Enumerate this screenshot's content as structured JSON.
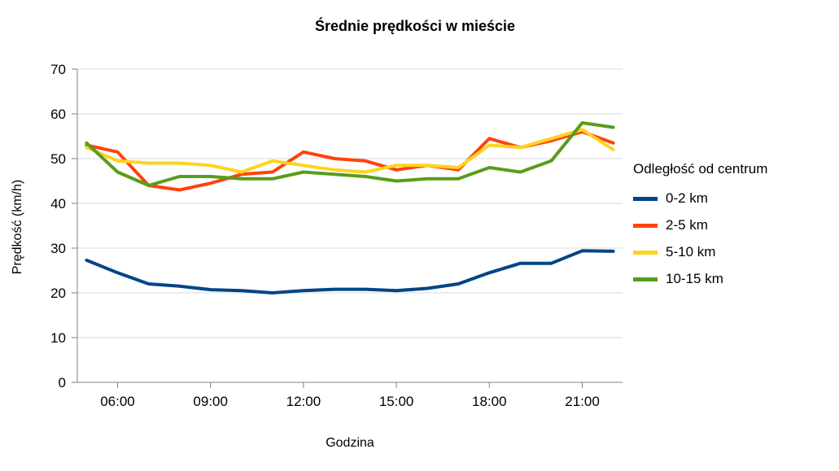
{
  "title": "Średnie prędkości w mieście",
  "chart_data": {
    "type": "line",
    "title": "Średnie prędkości w mieście",
    "xlabel": "Godzina",
    "ylabel": "Prędkość (km/h)",
    "ylim": [
      0,
      70
    ],
    "y_ticks": [
      0,
      10,
      20,
      30,
      40,
      50,
      60,
      70
    ],
    "grid": "horizontal",
    "legend_position": "right",
    "legend_title": "Odległość od centrum",
    "x_hours": [
      5,
      6,
      7,
      8,
      9,
      10,
      11,
      12,
      13,
      14,
      15,
      16,
      17,
      18,
      19,
      20,
      21,
      22
    ],
    "x_tick_hours": [
      6,
      9,
      12,
      15,
      18,
      21
    ],
    "x_tick_labels": [
      "06:00",
      "09:00",
      "12:00",
      "15:00",
      "18:00",
      "21:00"
    ],
    "series": [
      {
        "name": "0-2 km",
        "color": "#004586",
        "values": [
          27.3,
          24.5,
          22.0,
          21.5,
          20.7,
          20.5,
          20.0,
          20.5,
          20.8,
          20.8,
          20.5,
          21.0,
          22.0,
          24.5,
          26.6,
          26.6,
          29.4,
          29.3
        ]
      },
      {
        "name": "2-5 km",
        "color": "#FF420E",
        "values": [
          53.0,
          51.5,
          44.0,
          43.0,
          44.5,
          46.5,
          47.0,
          51.5,
          50.0,
          49.5,
          47.5,
          48.5,
          47.5,
          54.5,
          52.5,
          54.0,
          56.0,
          53.5
        ]
      },
      {
        "name": "5-10 km",
        "color": "#FFD320",
        "values": [
          52.5,
          49.5,
          49.0,
          49.0,
          48.5,
          47.0,
          49.5,
          48.5,
          47.5,
          47.0,
          48.5,
          48.5,
          48.0,
          53.0,
          52.5,
          54.5,
          56.5,
          52.0
        ]
      },
      {
        "name": "10-15 km",
        "color": "#579D1C",
        "values": [
          53.5,
          47.0,
          44.0,
          46.0,
          46.0,
          45.5,
          45.5,
          47.0,
          46.5,
          46.0,
          45.0,
          45.5,
          45.5,
          48.0,
          47.0,
          49.5,
          58.0,
          57.0
        ]
      }
    ],
    "colors": {
      "gridline": "#d9d9d9",
      "axis": "#808080",
      "text": "#000000",
      "background": "#ffffff"
    }
  }
}
